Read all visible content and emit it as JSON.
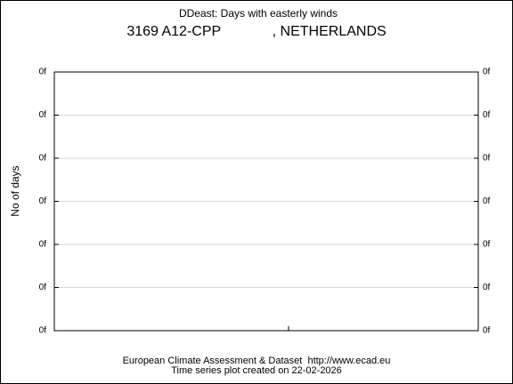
{
  "chart_data": {
    "type": "line",
    "title": "DDeast: Days with easterly winds",
    "subtitle": "3169 A12-CPP             , NETHERLANDS",
    "y_label": "No of days",
    "footer": [
      "European Climate Assessment & Dataset  http://www.ecad.eu",
      "Time series plot created on 22-02-2026"
    ],
    "ylim": [
      0,
      0.3
    ],
    "yticks": [
      {
        "value": 0,
        "label": "0f"
      },
      {
        "value": 0.05,
        "label": "0f"
      },
      {
        "value": 0.1,
        "label": "0f"
      },
      {
        "value": 0.15,
        "label": "0f"
      },
      {
        "value": 0.2,
        "label": "0f"
      },
      {
        "value": 0.25,
        "label": "0f"
      },
      {
        "value": 0.3,
        "label": "0f"
      }
    ],
    "grid": true,
    "series": []
  }
}
